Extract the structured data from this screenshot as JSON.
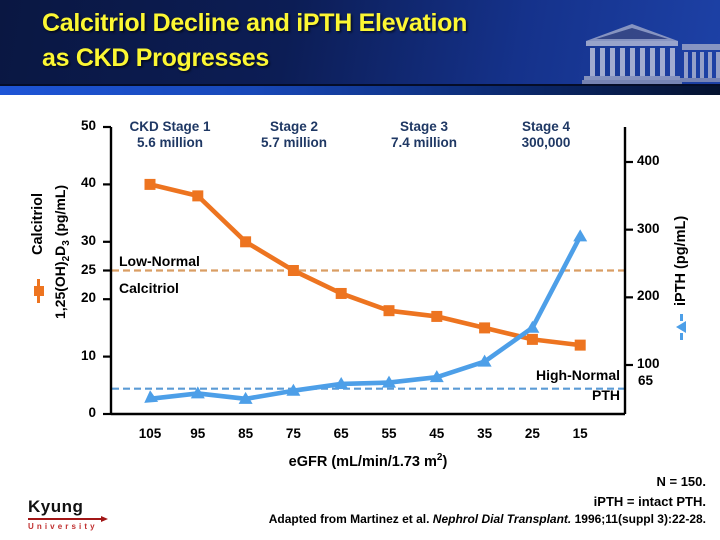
{
  "header": {
    "line1": "Calcitriol Decline and iPTH Elevation",
    "line2": "as CKD Progresses"
  },
  "stages": [
    {
      "label": "CKD Stage 1",
      "population": "5.6 million"
    },
    {
      "label": "Stage 2",
      "population": "5.7 million"
    },
    {
      "label": "Stage 3",
      "population": "7.4 million"
    },
    {
      "label": "Stage 4",
      "population": "300,000"
    }
  ],
  "axis_titles": {
    "left_line1": "Calcitriol",
    "left_line2_parts": {
      "p1": "1,25(OH)",
      "sub1": "2",
      "p2": "D",
      "sub2": "3",
      "p3": " (pg/mL)"
    },
    "right": "iPTH (pg/mL)"
  },
  "chart_data": {
    "type": "line",
    "x": [
      105,
      95,
      85,
      75,
      65,
      55,
      45,
      35,
      25,
      15
    ],
    "xlabel": "eGFR (mL/min/1.73 m2)",
    "x_axis_label_parts": {
      "prefix": "eGFR (mL/min/1.73 m",
      "sup": "2",
      "suffix": ")"
    },
    "series": [
      {
        "name": "Calcitriol",
        "full_label": "Calcitriol 1,25(OH)2D3 (pg/mL)",
        "axis": "left",
        "color": "#ed7420",
        "marker": "square",
        "values": [
          40,
          38,
          30,
          25,
          21,
          18,
          17,
          15,
          13,
          12
        ]
      },
      {
        "name": "iPTH",
        "full_label": "iPTH (pg/mL)",
        "axis": "right",
        "color": "#4d9fe8",
        "marker": "triangle",
        "start_marker": "arrow",
        "values": [
          50,
          58,
          50,
          62,
          72,
          74,
          82,
          105,
          155,
          290
        ]
      }
    ],
    "left_axis": {
      "ticks": [
        50,
        40,
        30,
        25,
        20,
        10,
        0
      ],
      "range": [
        0,
        50
      ]
    },
    "right_axis": {
      "ticks": [
        400,
        300,
        200,
        100
      ],
      "threshold_label": "65",
      "range": [
        0,
        450
      ]
    },
    "reference_lines": [
      {
        "axis": "left",
        "value": 25,
        "color": "#d99e64",
        "label_line1": "Low-Normal",
        "label_line2": "Calcitriol"
      },
      {
        "axis": "right",
        "value": 65,
        "color": "#5b9bd5",
        "label_line1": "High-Normal",
        "label_line2": "PTH"
      }
    ],
    "grid": false,
    "legend_position": "axis-titles"
  },
  "footer": {
    "n_note": "N = 150.",
    "ipth_note": "iPTH = intact PTH.",
    "source_prefix": "Adapted from Martinez et al. ",
    "source_journal": "Nephrol Dial Transplant.",
    "source_suffix": " 1996;11(suppl 3):22-28.",
    "logo_name": "Kyung",
    "logo_sub": "University"
  },
  "colors": {
    "title_text": "#fcf733",
    "stage_text": "#1f3864",
    "calcitriol_series": "#ed7420",
    "ipth_series": "#4d9fe8",
    "calcitriol_threshold_line": "#d99e64",
    "ipth_threshold_line": "#5b9bd5",
    "header_left": "#0a1742",
    "header_right": "#1d41a6"
  }
}
